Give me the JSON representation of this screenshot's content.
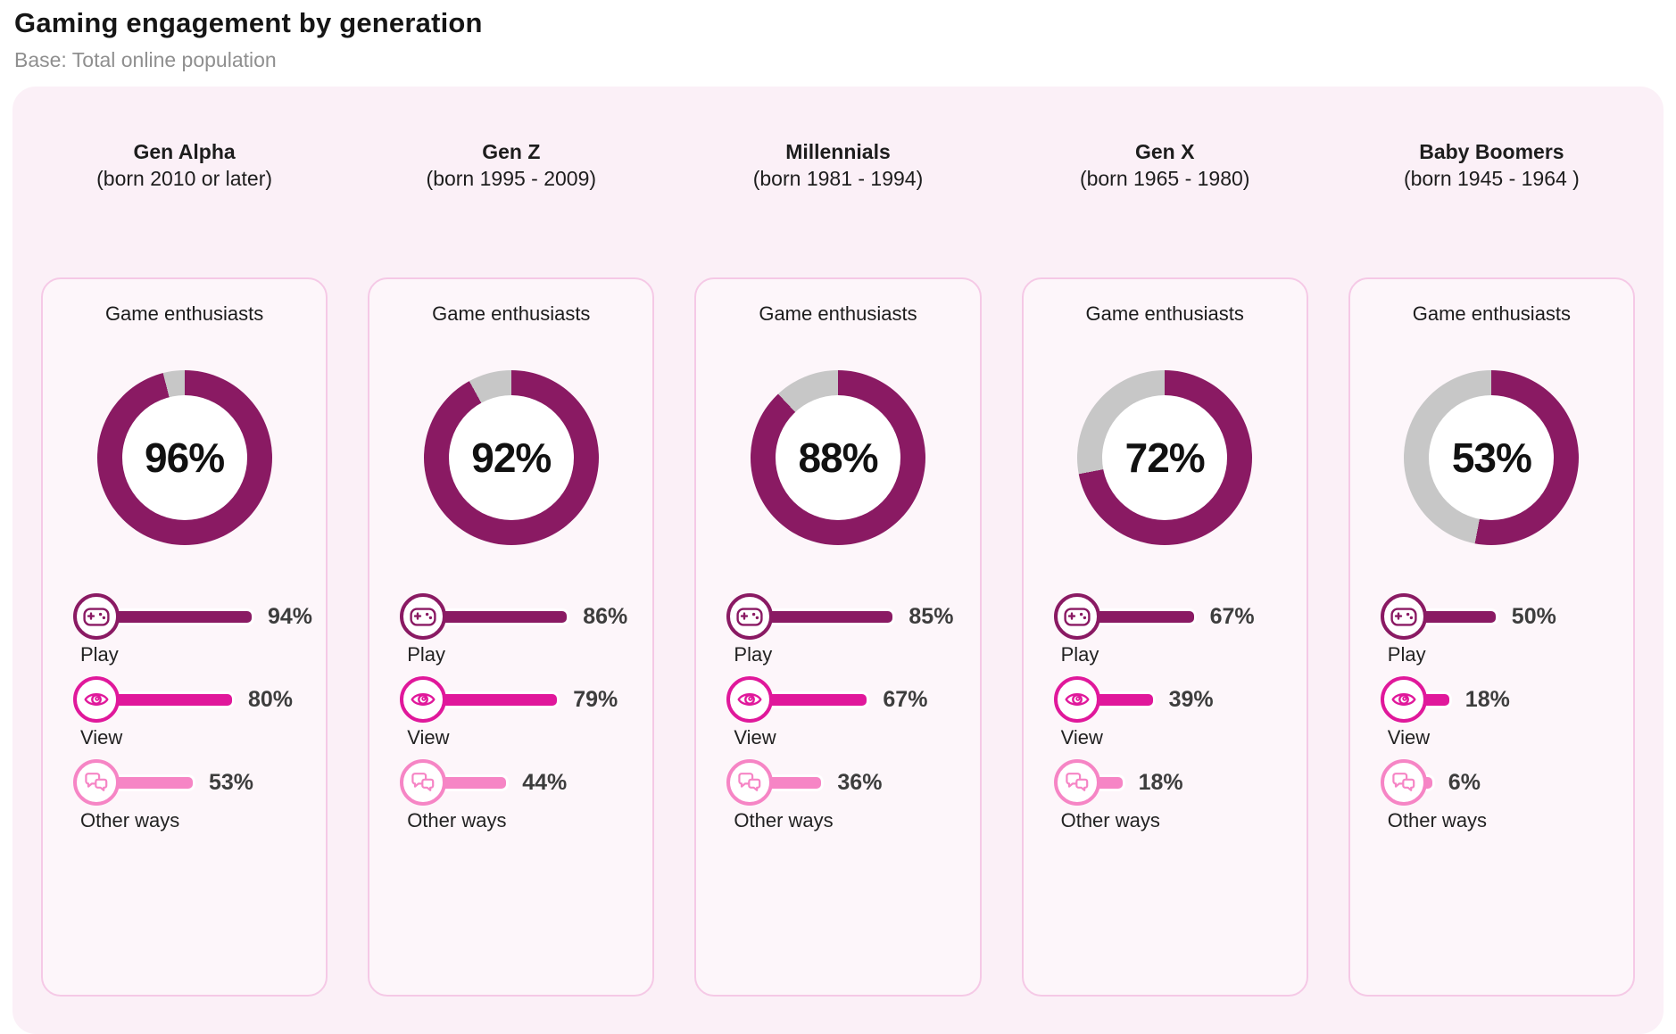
{
  "page": {
    "title": "Gaming engagement by generation",
    "subtitle": "Base: Total online population"
  },
  "labels": {
    "card_title": "Game enthusiasts",
    "play": "Play",
    "view": "View",
    "other_ways": "Other ways"
  },
  "icons": {
    "play": "gamepad-icon",
    "view": "eye-icon",
    "other_ways": "chat-bubbles-icon"
  },
  "theme": {
    "primary_magenta": "#8a1a63",
    "view_pink": "#e0189b",
    "other_pink": "#f685c5",
    "remainder_gray": "#c7c7c7",
    "board_background": "#fbf0f7",
    "card_background": "#fdf6fa",
    "card_border": "#f5c9e6"
  },
  "chart_data": {
    "type": "donut+bar",
    "title": "Gaming engagement by generation",
    "subtitle": "Base: Total online population",
    "donut_metric": "Game enthusiasts (%)",
    "bar_metrics": [
      "Play",
      "View",
      "Other ways"
    ],
    "value_range": [
      0,
      100
    ],
    "donut_start": "top, clockwise",
    "generations": [
      {
        "name": "Gen Alpha",
        "born": "(born 2010 or later)",
        "enthusiasts": 96,
        "play": 94,
        "view": 80,
        "other_ways": 53
      },
      {
        "name": "Gen Z",
        "born": "(born 1995 - 2009)",
        "enthusiasts": 92,
        "play": 86,
        "view": 79,
        "other_ways": 44
      },
      {
        "name": "Millennials",
        "born": "(born 1981 - 1994)",
        "enthusiasts": 88,
        "play": 85,
        "view": 67,
        "other_ways": 36
      },
      {
        "name": "Gen X",
        "born": "(born 1965 - 1980)",
        "enthusiasts": 72,
        "play": 67,
        "view": 39,
        "other_ways": 18
      },
      {
        "name": "Baby Boomers",
        "born": "(born 1945 - 1964 )",
        "enthusiasts": 53,
        "play": 50,
        "view": 18,
        "other_ways": 6
      }
    ]
  }
}
